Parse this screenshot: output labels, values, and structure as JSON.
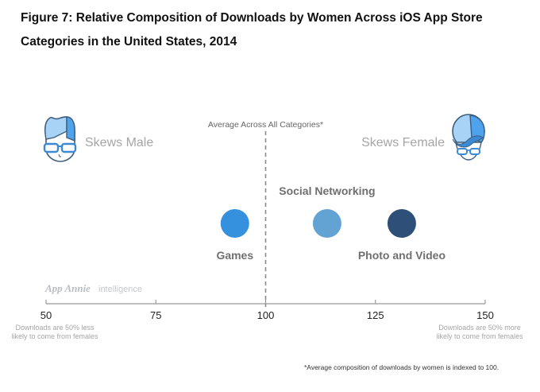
{
  "header": {
    "title_line1": "Figure 7: Relative Composition of Downloads by Women Across iOS App Store",
    "title_line2": "Categories in the United States, 2014"
  },
  "annotations": {
    "skews_male": "Skews Male",
    "skews_female": "Skews Female",
    "average_label": "Average Across All Categories*",
    "left_note_line1": "Downloads are 50% less",
    "left_note_line2": "likely to come from females",
    "right_note_line1": "Downloads are 50% more",
    "right_note_line2": "likely to come from females",
    "watermark_brand": "App Annie",
    "watermark_suffix": "intelligence",
    "footnote": "*Average composition of downloads by women is indexed to 100.",
    "male_icon": "male-avatar-glasses-icon",
    "female_icon": "female-avatar-glasses-icon"
  },
  "chart_data": {
    "type": "scatter",
    "title": "Figure 7: Relative Composition of Downloads by Women Across iOS App Store Categories in the United States, 2014",
    "xlabel": "",
    "ylabel": "",
    "xlim": [
      50,
      150
    ],
    "xticks": [
      50,
      75,
      100,
      125,
      150
    ],
    "xtick_labels": [
      "50",
      "75",
      "100",
      "125",
      "150"
    ],
    "reference_line": {
      "x": 100,
      "label": "Average Across All Categories*",
      "style": "dashed"
    },
    "grid": false,
    "points": [
      {
        "name": "Games",
        "x": 93,
        "color": "#3590de",
        "label_position": "below"
      },
      {
        "name": "Social Networking",
        "x": 114,
        "color": "#62a3d4",
        "label_position": "above"
      },
      {
        "name": "Photo and Video",
        "x": 131,
        "color": "#2d4f78",
        "label_position": "below"
      }
    ]
  }
}
